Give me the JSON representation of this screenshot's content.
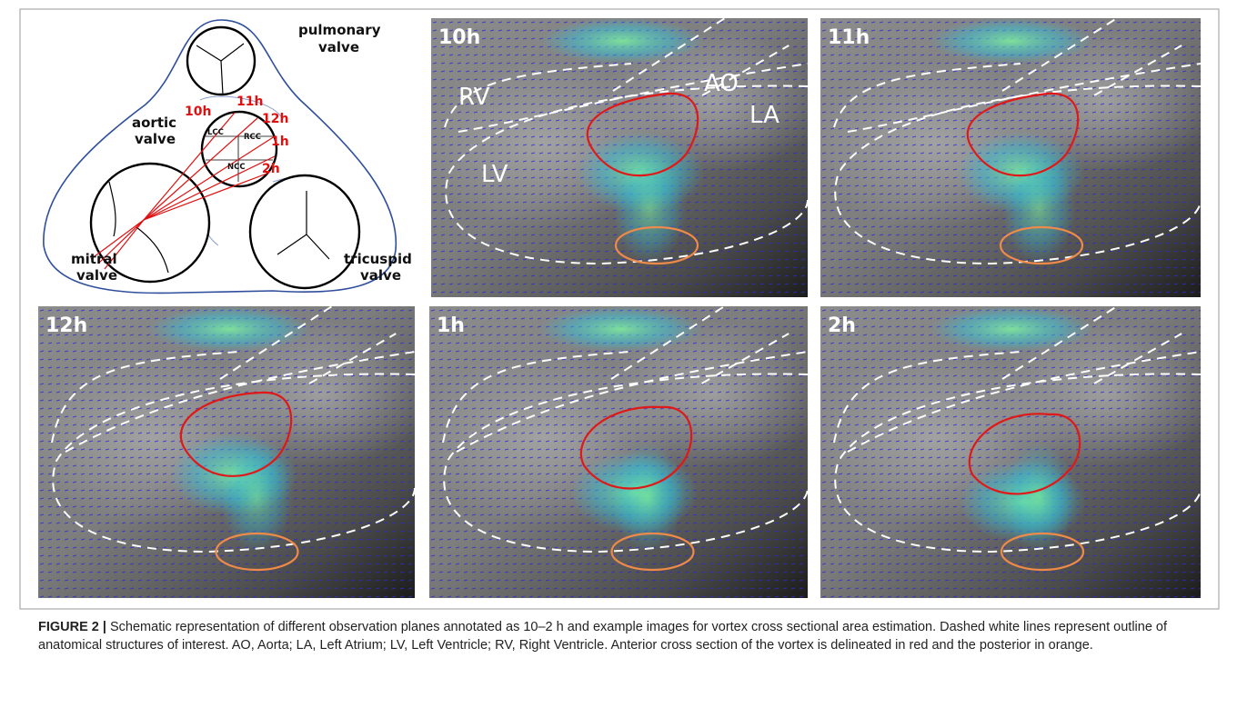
{
  "schematic": {
    "valves": [
      {
        "lines": [
          "pulmonary",
          "valve"
        ]
      },
      {
        "lines": [
          "aortic",
          "valve"
        ]
      },
      {
        "lines": [
          "mitral",
          "valve"
        ]
      },
      {
        "lines": [
          "tricuspid",
          "valve"
        ]
      }
    ],
    "planes": [
      "10h",
      "11h",
      "12h",
      "1h",
      "2h"
    ],
    "cusps": [
      "LCC",
      "RCC",
      "NCC"
    ]
  },
  "panels": [
    {
      "label": "10h",
      "regions": [
        "AO",
        "RV",
        "LA",
        "LV"
      ]
    },
    {
      "label": "11h"
    },
    {
      "label": "12h"
    },
    {
      "label": "1h"
    },
    {
      "label": "2h"
    }
  ],
  "caption": {
    "label": "FIGURE 2 |",
    "text": "Schematic representation of different observation planes annotated as 10–2 h and example images for vortex cross sectional area estimation. Dashed white lines represent outline of anatomical structures of interest. AO, Aorta; LA, Left Atrium; LV, Left Ventricle; RV, Right Ventricle. Anterior cross section of the vortex is delineated in red and the posterior in orange."
  }
}
